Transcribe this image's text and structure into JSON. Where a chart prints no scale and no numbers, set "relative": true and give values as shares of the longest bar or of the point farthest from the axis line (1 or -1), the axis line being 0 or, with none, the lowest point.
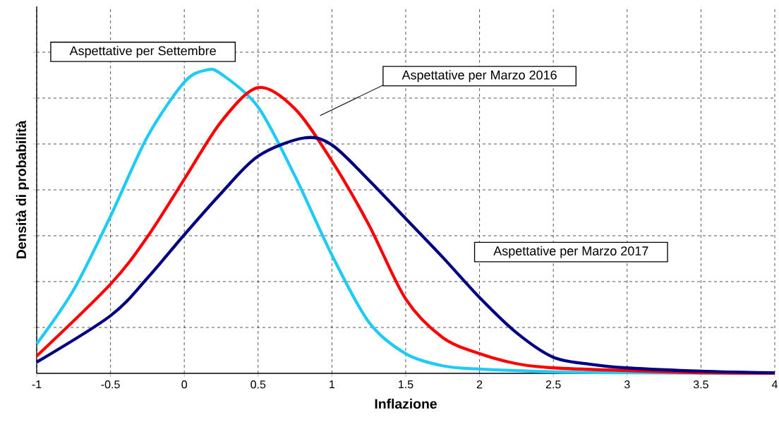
{
  "chart_data": {
    "type": "line",
    "xlabel": "Inflazione",
    "ylabel": "Densità di probabilità",
    "relative": true,
    "xlim": [
      -1,
      4
    ],
    "xticks": [
      -1,
      -0.5,
      0,
      0.5,
      1,
      1.5,
      2,
      2.5,
      3,
      3.5,
      4
    ],
    "grid": true,
    "legend": false,
    "marker": "none",
    "line_style": "solid",
    "series": [
      {
        "name": "Aspettative per Settembre",
        "color": "#1ecbf5",
        "x": [
          -1,
          -0.75,
          -0.5,
          -0.25,
          0,
          0.15,
          0.25,
          0.5,
          0.75,
          1,
          1.25,
          1.5,
          1.75,
          2,
          2.5,
          3,
          4
        ],
        "values": [
          0.097,
          0.275,
          0.518,
          0.78,
          0.96,
          1,
          0.987,
          0.878,
          0.65,
          0.39,
          0.169,
          0.065,
          0.025,
          0.014,
          0.005,
          0.002,
          0
        ]
      },
      {
        "name": "Aspettative per Marzo 2016",
        "color": "#ff0000",
        "x": [
          -1,
          -0.5,
          -0.25,
          0,
          0.25,
          0.5,
          0.75,
          1,
          1.25,
          1.5,
          1.75,
          2,
          2.25,
          2.5,
          3,
          3.5,
          4
        ],
        "values": [
          0.057,
          0.294,
          0.45,
          0.64,
          0.83,
          0.942,
          0.872,
          0.7,
          0.49,
          0.245,
          0.118,
          0.065,
          0.032,
          0.018,
          0.009,
          0.002,
          0
        ]
      },
      {
        "name": "Aspettative per Marzo 2017",
        "color": "#000080",
        "x": [
          -1,
          -0.5,
          -0.25,
          0,
          0.25,
          0.5,
          0.81,
          1,
          1.25,
          1.5,
          1.75,
          2,
          2.25,
          2.5,
          2.75,
          3,
          3.5,
          4
        ],
        "values": [
          0.037,
          0.19,
          0.314,
          0.457,
          0.594,
          0.716,
          0.776,
          0.753,
          0.637,
          0.51,
          0.383,
          0.25,
          0.134,
          0.053,
          0.03,
          0.018,
          0.007,
          0.002
        ]
      }
    ]
  }
}
